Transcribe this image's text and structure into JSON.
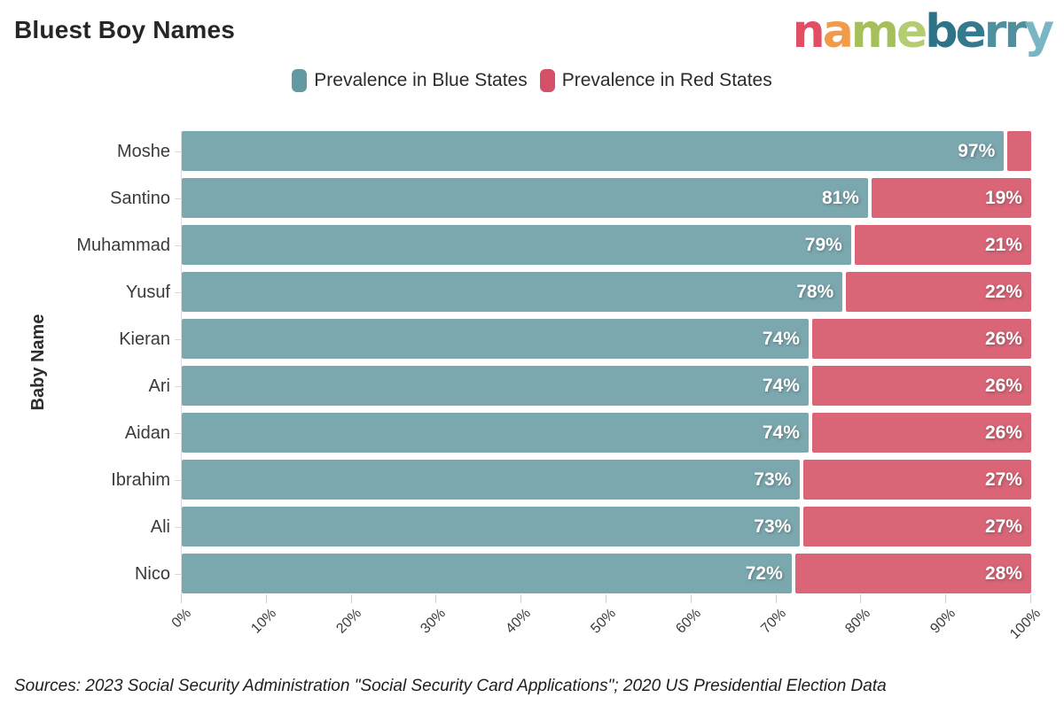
{
  "header": {
    "title": "Bluest Boy Names"
  },
  "logo": {
    "text": "nameberry",
    "letters": [
      {
        "ch": "n",
        "color": "#e14f64"
      },
      {
        "ch": "a",
        "color": "#f09a4a"
      },
      {
        "ch": "m",
        "color": "#a5c05b"
      },
      {
        "ch": "e",
        "color": "#b5cd72"
      },
      {
        "ch": "b",
        "color": "#2f7389"
      },
      {
        "ch": "e",
        "color": "#35798e"
      },
      {
        "ch": "r",
        "color": "#4f8f9e"
      },
      {
        "ch": "r",
        "color": "#4f8f9e"
      },
      {
        "ch": "y",
        "color": "#79b5c3"
      }
    ]
  },
  "legend": [
    {
      "label": "Prevalence in Blue States",
      "color": "#639aa2"
    },
    {
      "label": "Prevalence in Red States",
      "color": "#d54f66"
    }
  ],
  "chart_data": {
    "type": "bar",
    "orientation": "horizontal",
    "stacked": true,
    "title": "Bluest Boy Names",
    "xlabel": "",
    "ylabel": "Baby Name",
    "xlim": [
      0,
      100
    ],
    "grid": false,
    "legend_position": "top-center",
    "x_ticks": [
      "0%",
      "10%",
      "20%",
      "30%",
      "40%",
      "50%",
      "60%",
      "70%",
      "80%",
      "90%",
      "100%"
    ],
    "categories": [
      "Moshe",
      "Santino",
      "Muhammad",
      "Yusuf",
      "Kieran",
      "Ari",
      "Aidan",
      "Ibrahim",
      "Ali",
      "Nico"
    ],
    "series": [
      {
        "name": "Prevalence in Blue States",
        "color": "#7ba8af",
        "values": [
          97,
          81,
          79,
          78,
          74,
          74,
          74,
          73,
          73,
          72
        ],
        "labels": [
          "97%",
          "81%",
          "79%",
          "78%",
          "74%",
          "74%",
          "74%",
          "73%",
          "73%",
          "72%"
        ]
      },
      {
        "name": "Prevalence in Red States",
        "color": "#d96577",
        "values": [
          3,
          19,
          21,
          22,
          26,
          26,
          26,
          27,
          27,
          28
        ],
        "labels": [
          "",
          "19%",
          "21%",
          "22%",
          "26%",
          "26%",
          "26%",
          "27%",
          "27%",
          "28%"
        ]
      }
    ]
  },
  "footer": {
    "source": "Sources: 2023 Social Security Administration \"Social Security Card Applications\"; 2020 US Presidential Election Data"
  }
}
